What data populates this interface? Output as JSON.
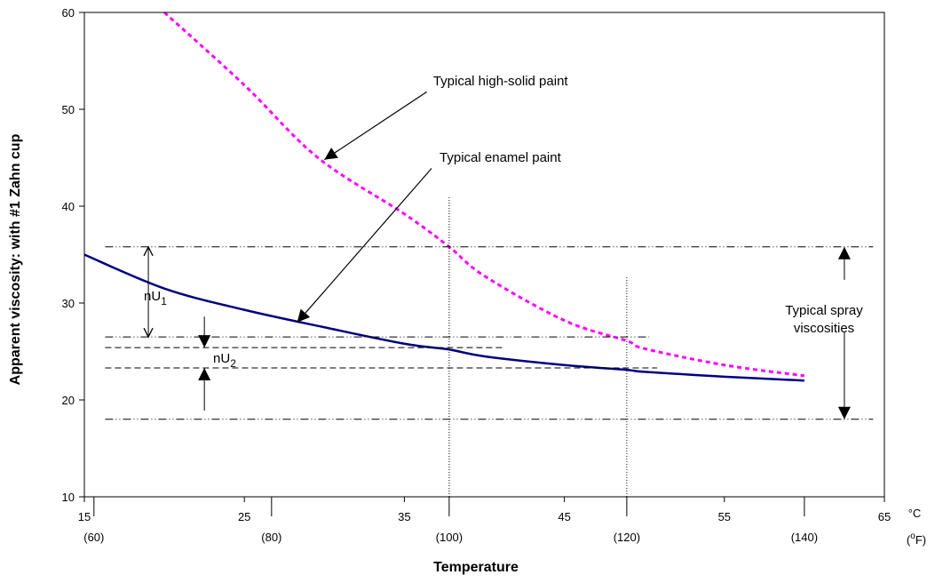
{
  "chart_data": {
    "type": "line",
    "xlabel": "Temperature",
    "ylabel": "Apparent viscosity: with #1 Zahn cup",
    "xlim": [
      15,
      65
    ],
    "ylim": [
      10,
      60
    ],
    "x_ticks": [
      "15",
      "25",
      "35",
      "45",
      "55",
      "65"
    ],
    "y_ticks": [
      "10",
      "20",
      "30",
      "40",
      "50",
      "60"
    ],
    "x_unit_c": "°C",
    "x_unit_f_open": "(",
    "x_unit_f_o": "o",
    "x_unit_f_close": "F)",
    "f_ticks": [
      {
        "x": 15.6,
        "label": "(60)"
      },
      {
        "x": 26.7,
        "label": "(80)"
      },
      {
        "x": 37.8,
        "label": "(100)"
      },
      {
        "x": 48.9,
        "label": "(120)"
      },
      {
        "x": 60.0,
        "label": "(140)"
      }
    ],
    "grid": false,
    "series": [
      {
        "points": [
          [
            15,
            35.0
          ],
          [
            20,
            31.5
          ],
          [
            25,
            29.3
          ],
          [
            30,
            27.5
          ],
          [
            35,
            25.8
          ],
          [
            37.8,
            25.2
          ],
          [
            40,
            24.5
          ],
          [
            45,
            23.6
          ],
          [
            48.9,
            23.1
          ],
          [
            50,
            22.9
          ],
          [
            55,
            22.4
          ],
          [
            60,
            22.0
          ]
        ],
        "color": "#000080",
        "style": "solid"
      },
      {
        "points": [
          [
            20,
            60.0
          ],
          [
            25,
            52.5
          ],
          [
            29.6,
            45.0
          ],
          [
            35,
            39.2
          ],
          [
            37.8,
            35.8
          ],
          [
            40,
            32.8
          ],
          [
            45,
            28.2
          ],
          [
            48.9,
            26.1
          ],
          [
            50,
            25.3
          ],
          [
            55,
            23.6
          ],
          [
            60,
            22.5
          ]
        ],
        "color": "#ff00ff",
        "style": "dashed"
      }
    ],
    "hlines": [
      {
        "y": 35.8,
        "x0": 16.3,
        "x1": 64.3,
        "style": "dashdotdot"
      },
      {
        "y": 26.5,
        "x0": 16.3,
        "x1": 50.3,
        "style": "dashdotdot"
      },
      {
        "y": 25.4,
        "x0": 16.3,
        "x1": 41.3,
        "style": "dashed"
      },
      {
        "y": 23.3,
        "x0": 16.3,
        "x1": 50.8,
        "style": "dashed"
      },
      {
        "y": 18.0,
        "x0": 16.3,
        "x1": 64.3,
        "style": "dashdotdot"
      }
    ],
    "vlines": [
      {
        "x": 37.8,
        "y0": 10,
        "y1": 41.0
      },
      {
        "x": 48.9,
        "y0": 10,
        "y1": 32.7
      }
    ],
    "annotations": [
      {
        "key": "high_solid",
        "text": "Typical high-solid paint",
        "tx": 36.8,
        "ty": 52.5,
        "ax0": 36.4,
        "ay0": 51.8,
        "ax1": 30.0,
        "ay1": 44.8
      },
      {
        "key": "enamel",
        "text": "Typical enamel paint",
        "tx": 37.2,
        "ty": 44.6,
        "ax0": 36.7,
        "ay0": 43.9,
        "ax1": 28.3,
        "ay1": 28.0
      }
    ],
    "spray_label_line1": "Typical spray",
    "spray_label_line2": "viscosities",
    "nu1_base": "nU",
    "nu1_sub": "1",
    "nu2_base": "nU",
    "nu2_sub": "2",
    "colors": {
      "enamel": "#000080",
      "high_solid": "#ff00ff",
      "axis": "#000000"
    }
  }
}
